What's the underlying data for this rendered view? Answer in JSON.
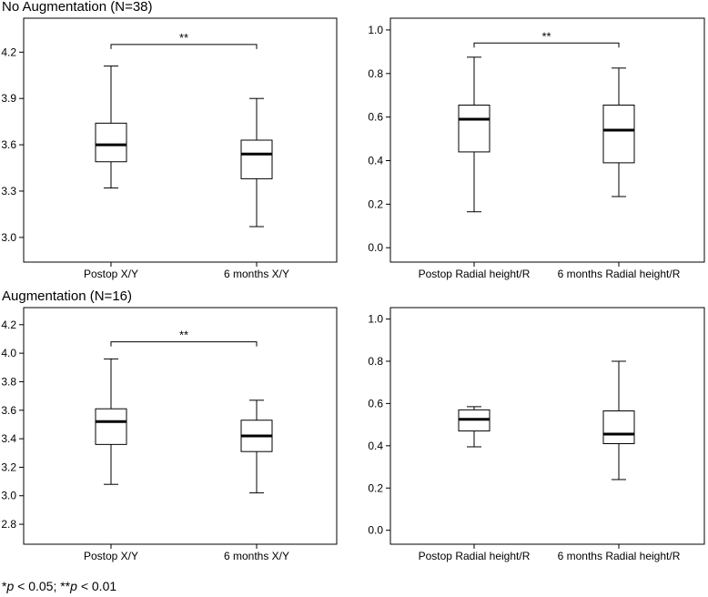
{
  "figure": {
    "group_titles": [
      "No Augmentation (N=38)",
      "Augmentation (N=16)"
    ],
    "footnote": {
      "star1": "*",
      "p1": "p",
      "text1": " < 0.05; ",
      "star2": "**",
      "p2": "p",
      "text2": " < 0.01"
    }
  },
  "chart_data": [
    {
      "type": "boxplot",
      "group": "No Augmentation (N=38)",
      "categories": [
        "Postop X/Y",
        "6 months X/Y"
      ],
      "boxes": [
        {
          "min": 3.32,
          "q1": 3.49,
          "median": 3.6,
          "q3": 3.74,
          "max": 4.11
        },
        {
          "min": 3.07,
          "q1": 3.38,
          "median": 3.54,
          "q3": 3.63,
          "max": 3.9
        }
      ],
      "yticks": [
        "3.0",
        "3.3",
        "3.6",
        "3.9",
        "4.2"
      ],
      "ylim": [
        2.84,
        4.42
      ],
      "significance": {
        "label": "**",
        "y": 4.25
      }
    },
    {
      "type": "boxplot",
      "group": "No Augmentation (N=38)",
      "categories": [
        "Postop Radial height/R",
        "6 months Radial height/R"
      ],
      "boxes": [
        {
          "min": 0.165,
          "q1": 0.44,
          "median": 0.59,
          "q3": 0.655,
          "max": 0.875
        },
        {
          "min": 0.235,
          "q1": 0.39,
          "median": 0.54,
          "q3": 0.655,
          "max": 0.825
        }
      ],
      "yticks": [
        "0.0",
        "0.2",
        "0.4",
        "0.6",
        "0.8",
        "1.0"
      ],
      "ylim": [
        -0.066,
        1.054
      ],
      "significance": {
        "label": "**",
        "y": 0.94
      }
    },
    {
      "type": "boxplot",
      "group": "Augmentation (N=16)",
      "categories": [
        "Postop X/Y",
        "6 months X/Y"
      ],
      "boxes": [
        {
          "min": 3.08,
          "q1": 3.36,
          "median": 3.52,
          "q3": 3.61,
          "max": 3.96
        },
        {
          "min": 3.02,
          "q1": 3.31,
          "median": 3.42,
          "q3": 3.53,
          "max": 3.67
        }
      ],
      "yticks": [
        "2.8",
        "3.0",
        "3.2",
        "3.4",
        "3.6",
        "3.8",
        "4.0",
        "4.2"
      ],
      "ylim": [
        2.66,
        4.32
      ],
      "significance": {
        "label": "**",
        "y": 4.08
      }
    },
    {
      "type": "boxplot",
      "group": "Augmentation (N=16)",
      "categories": [
        "Postop Radial height/R",
        "6 months Radial height/R"
      ],
      "boxes": [
        {
          "min": 0.395,
          "q1": 0.47,
          "median": 0.525,
          "q3": 0.57,
          "max": 0.585
        },
        {
          "min": 0.24,
          "q1": 0.41,
          "median": 0.455,
          "q3": 0.565,
          "max": 0.8
        }
      ],
      "yticks": [
        "0.0",
        "0.2",
        "0.4",
        "0.6",
        "0.8",
        "1.0"
      ],
      "ylim": [
        -0.066,
        1.054
      ],
      "significance": null
    }
  ]
}
